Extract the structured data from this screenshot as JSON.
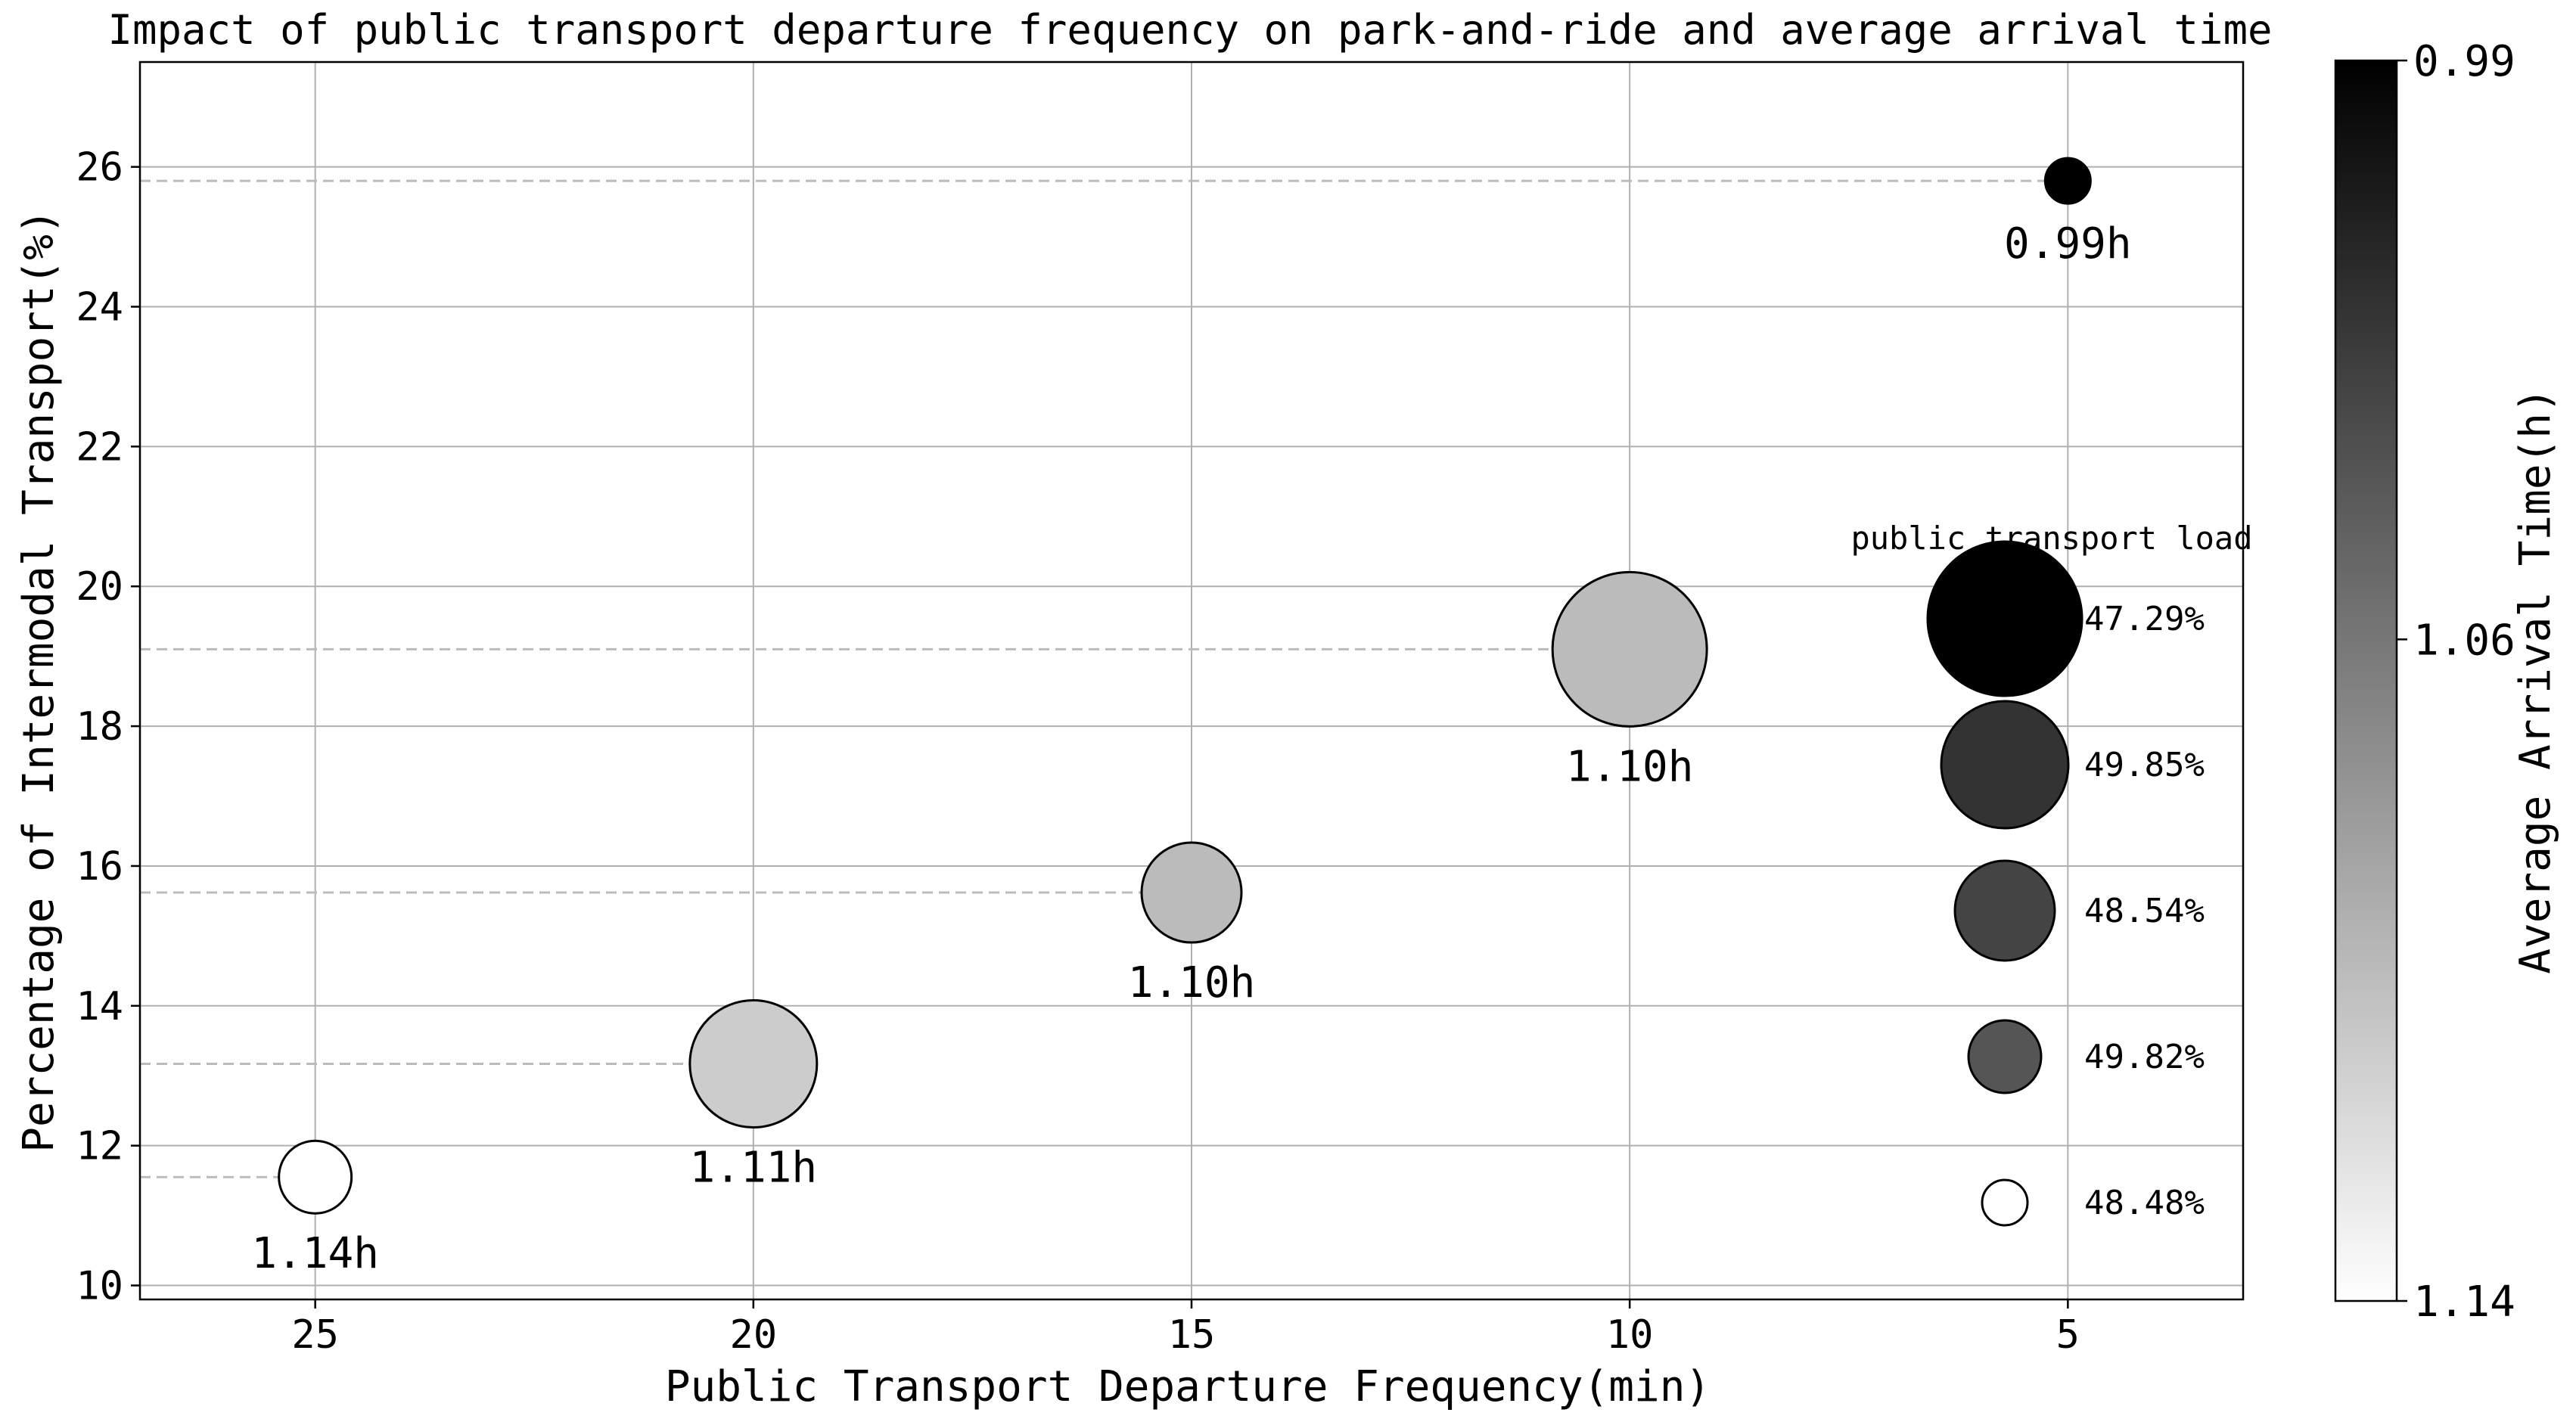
{
  "chart_data": {
    "type": "scatter",
    "title": "Impact of public transport departure frequency on park-and-ride and average arrival time",
    "xlabel": "Public Transport Departure Frequency(min)",
    "ylabel": "Percentage of Intermodal Transport(%)",
    "x_inverted": true,
    "xlim": [
      27,
      3
    ],
    "ylim": [
      9.8,
      27.5
    ],
    "x_ticks": [
      25,
      20,
      15,
      10,
      5
    ],
    "y_ticks": [
      10,
      12,
      14,
      16,
      18,
      20,
      22,
      24,
      26
    ],
    "grid": true,
    "points": [
      {
        "x": 25,
        "y": 11.55,
        "arrival_time": 1.14,
        "label": "1.14h",
        "load": 48.48
      },
      {
        "x": 20,
        "y": 13.17,
        "arrival_time": 1.11,
        "label": "1.11h",
        "load": 49.82
      },
      {
        "x": 15,
        "y": 15.62,
        "arrival_time": 1.1,
        "label": "1.10h",
        "load": 48.54
      },
      {
        "x": 10,
        "y": 19.1,
        "arrival_time": 1.1,
        "label": "1.10h",
        "load": 49.85
      },
      {
        "x": 5,
        "y": 25.8,
        "arrival_time": 0.99,
        "label": "0.99h",
        "load": 47.29
      }
    ],
    "legend": {
      "title": "public transport load",
      "placement": "right",
      "entries": [
        {
          "label": "47.29%",
          "rank": 5,
          "color": "#000000"
        },
        {
          "label": "49.85%",
          "rank": 4,
          "color": "#333333"
        },
        {
          "label": "48.54%",
          "rank": 3,
          "color": "#444444"
        },
        {
          "label": "49.82%",
          "rank": 2,
          "color": "#555555"
        },
        {
          "label": "48.48%",
          "rank": 1,
          "color": "#ffffff"
        }
      ]
    },
    "colorbar": {
      "label": "Average Arrival Time(h)",
      "range": [
        0.99,
        1.14
      ],
      "ticks": [
        "0.99",
        "1.06",
        "1.14"
      ],
      "colormap": "gray"
    }
  }
}
